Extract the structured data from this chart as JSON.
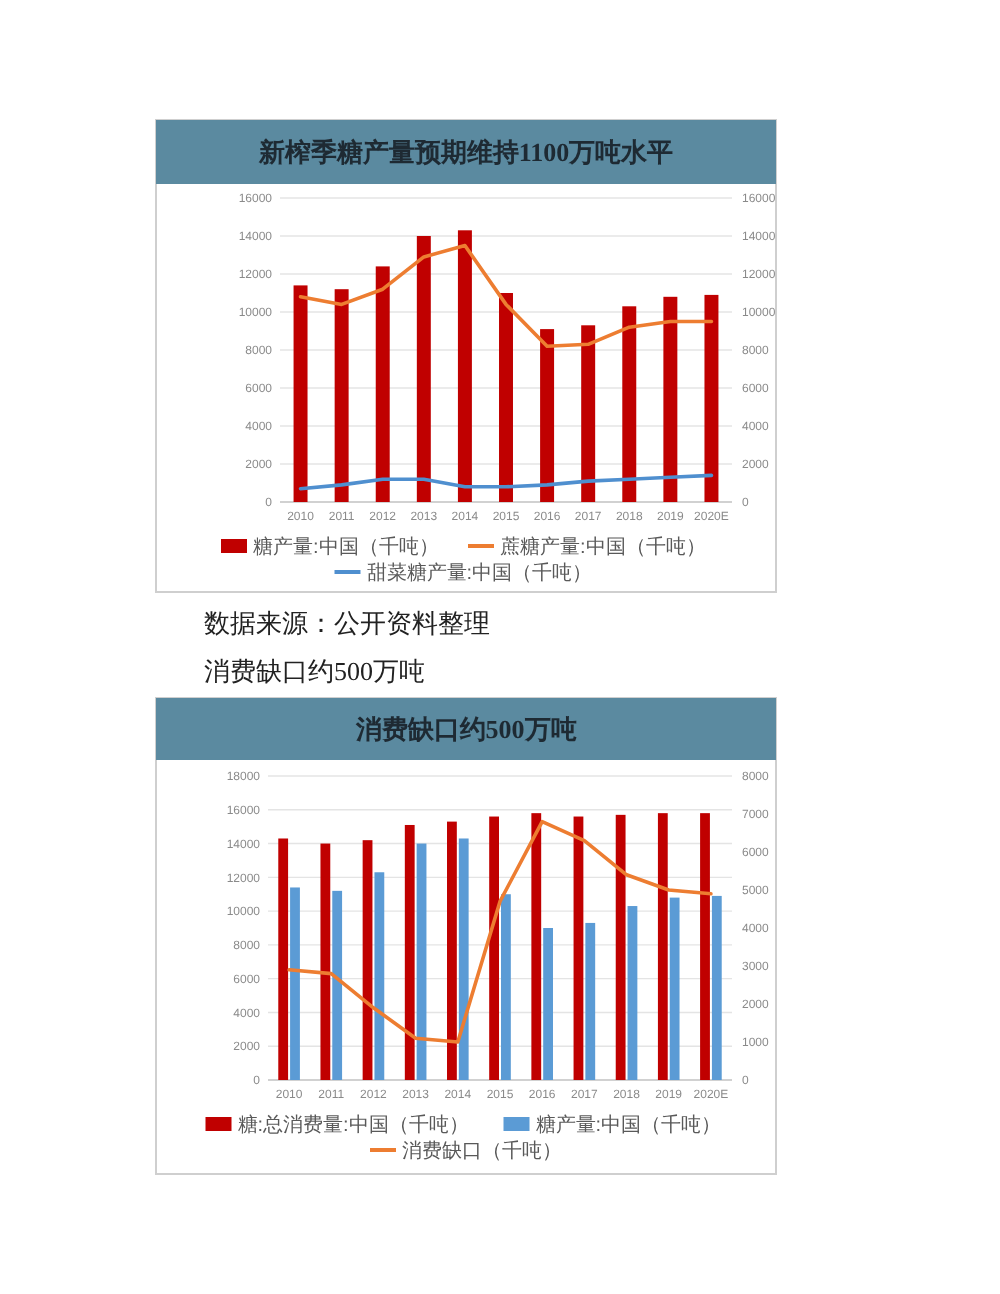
{
  "chart_data": [
    {
      "type": "bar",
      "title": "新榨季糖产量预期维持1100万吨水平",
      "categories": [
        "2010",
        "2011",
        "2012",
        "2013",
        "2014",
        "2015",
        "2016",
        "2017",
        "2018",
        "2019",
        "2020E"
      ],
      "series": [
        {
          "name": "糖产量:中国（千吨）",
          "color": "#c00000",
          "values": [
            11400,
            11200,
            12400,
            14000,
            14300,
            11000,
            9100,
            9300,
            10300,
            10800,
            10900
          ]
        },
        {
          "name": "蔗糖产量:中国（千吨）",
          "type": "line",
          "axis": "y2",
          "color": "#ed7d31",
          "values": [
            10800,
            10400,
            11200,
            12900,
            13500,
            10400,
            8200,
            8300,
            9200,
            9500,
            9500
          ]
        },
        {
          "name": "甜菜糖产量:中国（千吨）",
          "type": "line",
          "axis": "y2",
          "color": "#4f8fcf",
          "values": [
            700,
            900,
            1200,
            1200,
            800,
            800,
            900,
            1100,
            1200,
            1300,
            1400
          ]
        }
      ],
      "ylim": [
        0,
        16000
      ],
      "yticks": [
        0,
        2000,
        4000,
        6000,
        8000,
        10000,
        12000,
        14000,
        16000
      ],
      "y2lim": [
        0,
        16000
      ],
      "y2ticks": [
        0,
        2000,
        4000,
        6000,
        8000,
        10000,
        12000,
        14000,
        16000
      ],
      "grid": "y",
      "legend": "bottom",
      "annotations": [
        "数据来源：公开资料整理"
      ]
    },
    {
      "type": "bar",
      "title": "消费缺口约500万吨",
      "categories": [
        "2010",
        "2011",
        "2012",
        "2013",
        "2014",
        "2015",
        "2016",
        "2017",
        "2018",
        "2019",
        "2020E"
      ],
      "series": [
        {
          "name": "糖:总消费量:中国（千吨）",
          "color": "#c00000",
          "values": [
            14300,
            14000,
            14200,
            15100,
            15300,
            15600,
            15800,
            15600,
            15700,
            15800,
            15800
          ]
        },
        {
          "name": "糖产量:中国（千吨）",
          "color": "#5b9bd5",
          "values": [
            11400,
            11200,
            12300,
            14000,
            14300,
            11000,
            9000,
            9300,
            10300,
            10800,
            10900
          ]
        },
        {
          "name": "消费缺口（千吨）",
          "type": "line",
          "axis": "y2",
          "color": "#ed7d31",
          "values": [
            2900,
            2800,
            1900,
            1100,
            1000,
            4700,
            6800,
            6300,
            5400,
            5000,
            4900
          ]
        }
      ],
      "ylim": [
        0,
        18000
      ],
      "yticks": [
        0,
        2000,
        4000,
        6000,
        8000,
        10000,
        12000,
        14000,
        16000,
        18000
      ],
      "y2lim": [
        0,
        8000
      ],
      "y2ticks": [
        0,
        1000,
        2000,
        3000,
        4000,
        5000,
        6000,
        7000,
        8000
      ],
      "grid": "y",
      "legend": "bottom",
      "annotations": [
        "消费缺口约500万吨"
      ]
    }
  ]
}
